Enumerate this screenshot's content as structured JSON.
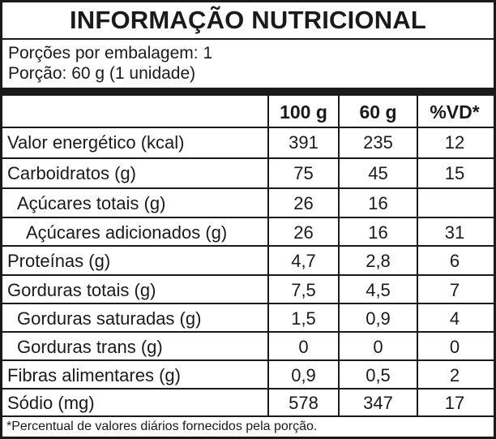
{
  "label": {
    "title": "INFORMAÇÃO NUTRICIONAL",
    "servings_per_package": "Porções por embalagem: 1",
    "serving_size": "Porção: 60 g (1 unidade)",
    "columns": [
      "100 g",
      "60 g",
      "%VD*"
    ],
    "rows": [
      {
        "name": "Valor energético (kcal)",
        "per100": "391",
        "per_serving": "235",
        "dv": "12"
      },
      {
        "name": "Carboidratos (g)",
        "per100": "75",
        "per_serving": "45",
        "dv": "15"
      },
      {
        "name": "Açúcares totais (g)",
        "per100": "26",
        "per_serving": "16",
        "dv": ""
      },
      {
        "name": "Açúcares adicionados (g)",
        "per100": "26",
        "per_serving": "16",
        "dv": "31"
      },
      {
        "name": "Proteínas (g)",
        "per100": "4,7",
        "per_serving": "2,8",
        "dv": "6"
      },
      {
        "name": "Gorduras totais (g)",
        "per100": "7,5",
        "per_serving": "4,5",
        "dv": "7"
      },
      {
        "name": "Gorduras saturadas (g)",
        "per100": "1,5",
        "per_serving": "0,9",
        "dv": "4"
      },
      {
        "name": "Gorduras trans (g)",
        "per100": "0",
        "per_serving": "0",
        "dv": "0"
      },
      {
        "name": "Fibras alimentares (g)",
        "per100": "0,9",
        "per_serving": "0,5",
        "dv": "2"
      },
      {
        "name": "Sódio (mg)",
        "per100": "578",
        "per_serving": "347",
        "dv": "17"
      }
    ],
    "footnote": "*Percentual de valores diários fornecidos pela porção."
  }
}
